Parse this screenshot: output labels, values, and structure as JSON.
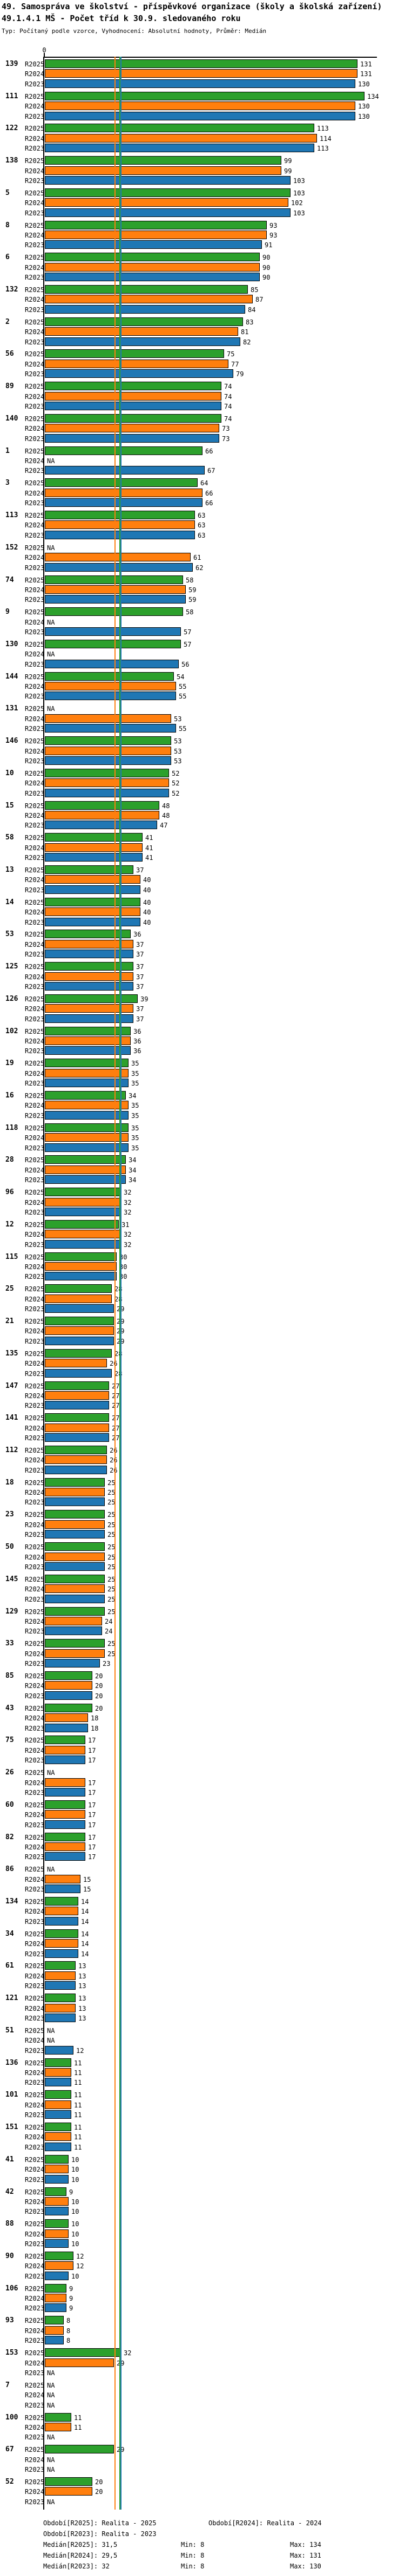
{
  "header": {
    "title_line1": "49. Samospráva ve školství - příspěvkové organizace (školy a školská zařízení)",
    "title_line2": "49.1.4.1 MŠ - Počet tříd k 30.9. sledovaného roku",
    "meta_line": "Typ: Počítaný podle vzorce, Vyhodnocení: Absolutní hodnoty, Průměr: Medián"
  },
  "axis": {
    "zero_label": "0"
  },
  "na_label": "NA",
  "colors": {
    "r2025": "#2ca02c",
    "r2024": "#ff7f0e",
    "r2023": "#1f77b4",
    "axis": "#000000"
  },
  "chart_data": {
    "type": "bar",
    "orientation": "horizontal",
    "title": "49.1.4.1 MŠ - Počet tříd k 30.9. sledovaného roku",
    "series_order": [
      "R2025",
      "R2024",
      "R2023"
    ],
    "series_colors": [
      "#2ca02c",
      "#ff7f0e",
      "#1f77b4"
    ],
    "x_axis": {
      "min": 0,
      "visible_tick_labels": [
        "0"
      ],
      "approx_max": 137
    },
    "reference_lines": [
      {
        "name": "Medián[R2024]",
        "value": 29.5,
        "color": "#ff7f0e"
      },
      {
        "name": "Medián[R2025]",
        "value": 31.5,
        "color": "#2ca02c"
      },
      {
        "name": "Medián[R2023]",
        "value": 32,
        "color": "#1f77b4"
      }
    ],
    "groups": [
      {
        "id": "139",
        "values": [
          131,
          131,
          130
        ]
      },
      {
        "id": "111",
        "values": [
          134,
          130,
          130
        ]
      },
      {
        "id": "122",
        "values": [
          113,
          114,
          113
        ]
      },
      {
        "id": "138",
        "values": [
          99,
          99,
          103
        ]
      },
      {
        "id": "5",
        "values": [
          103,
          102,
          103
        ]
      },
      {
        "id": "8",
        "values": [
          93,
          93,
          91
        ]
      },
      {
        "id": "6",
        "values": [
          90,
          90,
          90
        ]
      },
      {
        "id": "132",
        "values": [
          85,
          87,
          84
        ]
      },
      {
        "id": "2",
        "values": [
          83,
          81,
          82
        ]
      },
      {
        "id": "56",
        "values": [
          75,
          77,
          79
        ]
      },
      {
        "id": "89",
        "values": [
          74,
          74,
          74
        ]
      },
      {
        "id": "140",
        "values": [
          74,
          73,
          73
        ]
      },
      {
        "id": "1",
        "values": [
          66,
          null,
          67
        ]
      },
      {
        "id": "3",
        "values": [
          64,
          66,
          66
        ]
      },
      {
        "id": "113",
        "values": [
          63,
          63,
          63
        ]
      },
      {
        "id": "152",
        "values": [
          null,
          61,
          62
        ]
      },
      {
        "id": "74",
        "values": [
          58,
          59,
          59
        ]
      },
      {
        "id": "9",
        "values": [
          58,
          null,
          57
        ]
      },
      {
        "id": "130",
        "values": [
          57,
          null,
          56
        ]
      },
      {
        "id": "144",
        "values": [
          54,
          55,
          55
        ]
      },
      {
        "id": "131",
        "values": [
          null,
          53,
          55
        ]
      },
      {
        "id": "146",
        "values": [
          53,
          53,
          53
        ]
      },
      {
        "id": "10",
        "values": [
          52,
          52,
          52
        ]
      },
      {
        "id": "15",
        "values": [
          48,
          48,
          47
        ]
      },
      {
        "id": "58",
        "values": [
          41,
          41,
          41
        ]
      },
      {
        "id": "13",
        "values": [
          37,
          40,
          40
        ]
      },
      {
        "id": "14",
        "values": [
          40,
          40,
          40
        ]
      },
      {
        "id": "53",
        "values": [
          36,
          37,
          37
        ]
      },
      {
        "id": "125",
        "values": [
          37,
          37,
          37
        ]
      },
      {
        "id": "126",
        "values": [
          39,
          37,
          37
        ]
      },
      {
        "id": "102",
        "values": [
          36,
          36,
          36
        ]
      },
      {
        "id": "19",
        "values": [
          35,
          35,
          35
        ]
      },
      {
        "id": "16",
        "values": [
          34,
          35,
          35
        ]
      },
      {
        "id": "118",
        "values": [
          35,
          35,
          35
        ]
      },
      {
        "id": "28",
        "values": [
          34,
          34,
          34
        ]
      },
      {
        "id": "96",
        "values": [
          32,
          32,
          32
        ]
      },
      {
        "id": "12",
        "values": [
          31,
          32,
          32
        ]
      },
      {
        "id": "115",
        "values": [
          30,
          30,
          30
        ]
      },
      {
        "id": "25",
        "values": [
          28,
          28,
          29
        ]
      },
      {
        "id": "21",
        "values": [
          29,
          29,
          29
        ]
      },
      {
        "id": "135",
        "values": [
          28,
          26,
          28
        ]
      },
      {
        "id": "147",
        "values": [
          27,
          27,
          27
        ]
      },
      {
        "id": "141",
        "values": [
          27,
          27,
          27
        ]
      },
      {
        "id": "112",
        "values": [
          26,
          26,
          26
        ]
      },
      {
        "id": "18",
        "values": [
          25,
          25,
          25
        ]
      },
      {
        "id": "23",
        "values": [
          25,
          25,
          25
        ]
      },
      {
        "id": "50",
        "values": [
          25,
          25,
          25
        ]
      },
      {
        "id": "145",
        "values": [
          25,
          25,
          25
        ]
      },
      {
        "id": "129",
        "values": [
          25,
          24,
          24
        ]
      },
      {
        "id": "33",
        "values": [
          25,
          25,
          23
        ]
      },
      {
        "id": "85",
        "values": [
          20,
          20,
          20
        ]
      },
      {
        "id": "43",
        "values": [
          20,
          18,
          18
        ]
      },
      {
        "id": "75",
        "values": [
          17,
          17,
          17
        ]
      },
      {
        "id": "26",
        "values": [
          null,
          17,
          17
        ]
      },
      {
        "id": "60",
        "values": [
          17,
          17,
          17
        ]
      },
      {
        "id": "82",
        "values": [
          17,
          17,
          17
        ]
      },
      {
        "id": "86",
        "values": [
          null,
          15,
          15
        ]
      },
      {
        "id": "134",
        "values": [
          14,
          14,
          14
        ]
      },
      {
        "id": "34",
        "values": [
          14,
          14,
          14
        ]
      },
      {
        "id": "61",
        "values": [
          13,
          13,
          13
        ]
      },
      {
        "id": "121",
        "values": [
          13,
          13,
          13
        ]
      },
      {
        "id": "51",
        "values": [
          null,
          null,
          12
        ]
      },
      {
        "id": "136",
        "values": [
          11,
          11,
          11
        ]
      },
      {
        "id": "101",
        "values": [
          11,
          11,
          11
        ]
      },
      {
        "id": "151",
        "values": [
          11,
          11,
          11
        ]
      },
      {
        "id": "41",
        "values": [
          10,
          10,
          10
        ]
      },
      {
        "id": "42",
        "values": [
          9,
          10,
          10
        ]
      },
      {
        "id": "88",
        "values": [
          10,
          10,
          10
        ]
      },
      {
        "id": "90",
        "values": [
          12,
          12,
          10
        ]
      },
      {
        "id": "106",
        "values": [
          9,
          9,
          9
        ]
      },
      {
        "id": "93",
        "values": [
          8,
          8,
          8
        ]
      },
      {
        "id": "153",
        "values": [
          32,
          29,
          null
        ]
      },
      {
        "id": "7",
        "values": [
          null,
          null,
          null
        ]
      },
      {
        "id": "100",
        "values": [
          11,
          11,
          null
        ]
      },
      {
        "id": "67",
        "values": [
          29,
          null,
          null
        ]
      },
      {
        "id": "52",
        "values": [
          20,
          20,
          null
        ]
      }
    ]
  },
  "footer": {
    "obdobi_r2025": "Období[R2025]: Realita - 2025",
    "obdobi_r2024": "Období[R2024]: Realita - 2024",
    "obdobi_r2023": "Období[R2023]: Realita - 2023",
    "stat_rows": [
      {
        "median": "Medián[R2025]: 31,5",
        "min": "Min: 8",
        "max": "Max: 134"
      },
      {
        "median": "Medián[R2024]: 29,5",
        "min": "Min: 8",
        "max": "Max: 131"
      },
      {
        "median": "Medián[R2023]: 32",
        "min": "Min: 8",
        "max": "Max: 130"
      }
    ]
  }
}
